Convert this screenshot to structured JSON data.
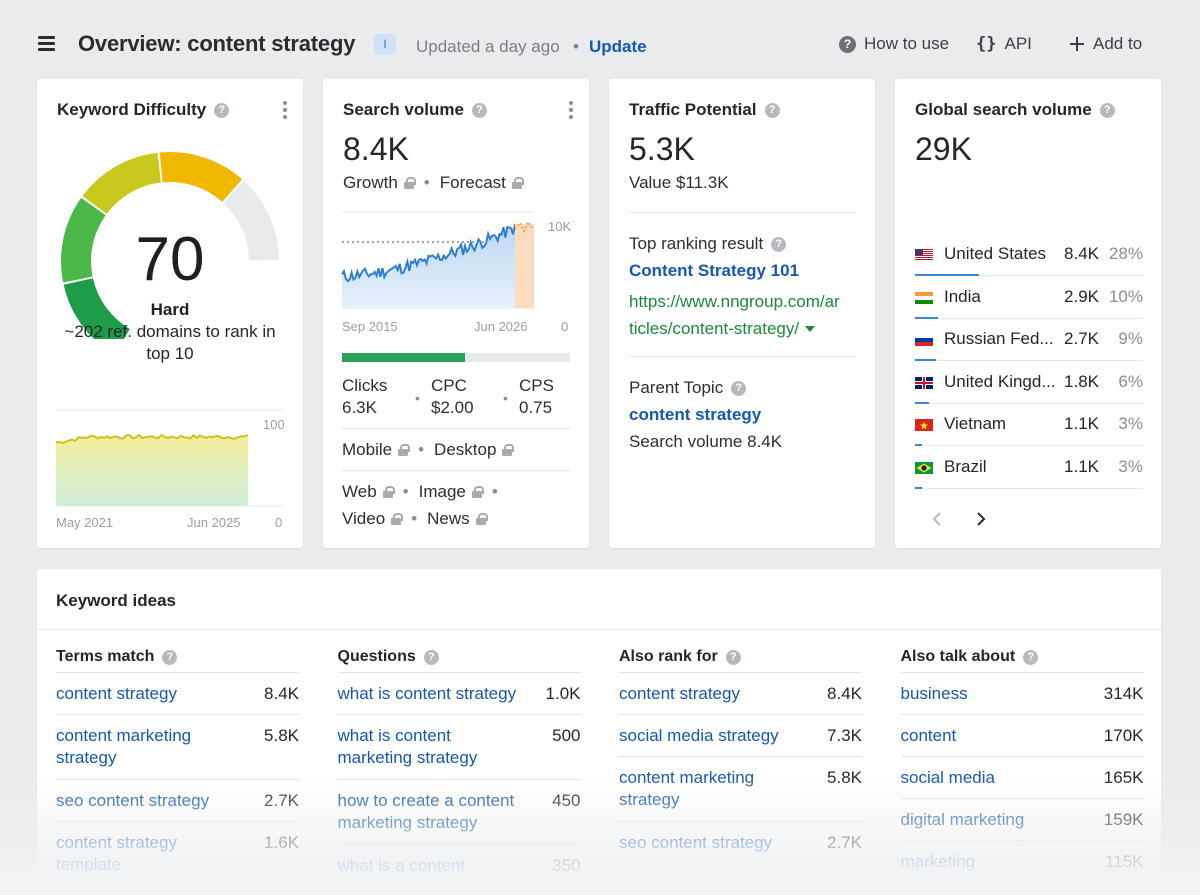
{
  "header": {
    "title": "Overview: content strategy",
    "badge": "I",
    "updated": "Updated a day ago",
    "separator": "•",
    "update_label": "Update",
    "how_to_use": "How to use",
    "api_icon_text": "{}",
    "api_label": "API",
    "add_to": "Add to"
  },
  "keyword_difficulty": {
    "title": "Keyword Difficulty",
    "score": "70",
    "label": "Hard",
    "description": "~202 ref. domains to rank in top 10",
    "chart_start": "May 2021",
    "chart_end": "Jun 2025",
    "axis_max": "100",
    "axis_min": "0"
  },
  "search_volume": {
    "title": "Search volume",
    "value": "8.4K",
    "growth": "Growth",
    "forecast": "Forecast",
    "chart_start": "Sep 2015",
    "chart_end": "Jun 2026",
    "axis_max": "10K",
    "axis_min": "0",
    "clicks_label": "Clicks",
    "clicks": "6.3K",
    "cpc_label": "CPC",
    "cpc": "$2.00",
    "cps_label": "CPS",
    "cps": "0.75",
    "mobile": "Mobile",
    "desktop": "Desktop",
    "web": "Web",
    "image": "Image",
    "video": "Video",
    "news": "News",
    "clicks_fraction": 0.54
  },
  "traffic_potential": {
    "title": "Traffic Potential",
    "value": "5.3K",
    "value_text": "Value $11.3K",
    "top_result_label": "Top ranking result",
    "top_result_title": "Content Strategy 101",
    "top_result_url_1": "https://www.nngroup.com/ar",
    "top_result_url_2": "ticles/content-strategy/",
    "parent_label": "Parent Topic",
    "parent_topic": "content strategy",
    "parent_volume": "Search volume 8.4K"
  },
  "global_volume": {
    "title": "Global search volume",
    "value": "29K",
    "countries": [
      {
        "name": "United States",
        "value": "8.4K",
        "pct": "28%",
        "share": 0.28
      },
      {
        "name": "India",
        "value": "2.9K",
        "pct": "10%",
        "share": 0.1
      },
      {
        "name": "Russian Fed...",
        "value": "2.7K",
        "pct": "9%",
        "share": 0.09
      },
      {
        "name": "United Kingd...",
        "value": "1.8K",
        "pct": "6%",
        "share": 0.06
      },
      {
        "name": "Vietnam",
        "value": "1.1K",
        "pct": "3%",
        "share": 0.03
      },
      {
        "name": "Brazil",
        "value": "1.1K",
        "pct": "3%",
        "share": 0.03
      }
    ]
  },
  "keyword_ideas": {
    "title": "Keyword ideas",
    "columns": [
      {
        "header": "Terms match",
        "rows": [
          {
            "kw": "content strategy",
            "v": "8.4K"
          },
          {
            "kw": "content marketing strategy",
            "v": "5.8K"
          },
          {
            "kw": "seo content strategy",
            "v": "2.7K"
          },
          {
            "kw": "content strategy template",
            "v": "1.6K"
          }
        ]
      },
      {
        "header": "Questions",
        "rows": [
          {
            "kw": "what is content strategy",
            "v": "1.0K"
          },
          {
            "kw": "what is content marketing strategy",
            "v": "500"
          },
          {
            "kw": "how to create a content marketing strategy",
            "v": "450"
          },
          {
            "kw": "what is a content",
            "v": "350"
          }
        ]
      },
      {
        "header": "Also rank for",
        "rows": [
          {
            "kw": "content strategy",
            "v": "8.4K"
          },
          {
            "kw": "social media strategy",
            "v": "7.3K"
          },
          {
            "kw": "content marketing strategy",
            "v": "5.8K"
          },
          {
            "kw": "seo content strategy",
            "v": "2.7K"
          }
        ]
      },
      {
        "header": "Also talk about",
        "rows": [
          {
            "kw": "business",
            "v": "314K"
          },
          {
            "kw": "content",
            "v": "170K"
          },
          {
            "kw": "social media",
            "v": "165K"
          },
          {
            "kw": "digital marketing",
            "v": "159K"
          },
          {
            "kw": "marketing",
            "v": "115K"
          }
        ]
      }
    ]
  },
  "colors": {
    "accent": "#1458b0",
    "url_green": "#1a8a3a",
    "gauge_dark_green": "#1e9c4a",
    "gauge_green": "#4cb848",
    "gauge_yellow": "#c8c81e",
    "gauge_orange": "#f0b800",
    "gauge_empty": "#e9eaec",
    "volume_line": "#2f7fd0",
    "forecast": "#f5a24a",
    "kd_line": "#c9c41c"
  },
  "icons": [
    "menu-icon",
    "help-icon",
    "braces-icon",
    "plus-icon",
    "lock-icon",
    "kebab-icon",
    "chevron-left-icon",
    "chevron-right-icon",
    "caret-down-icon",
    "flag-icon"
  ]
}
